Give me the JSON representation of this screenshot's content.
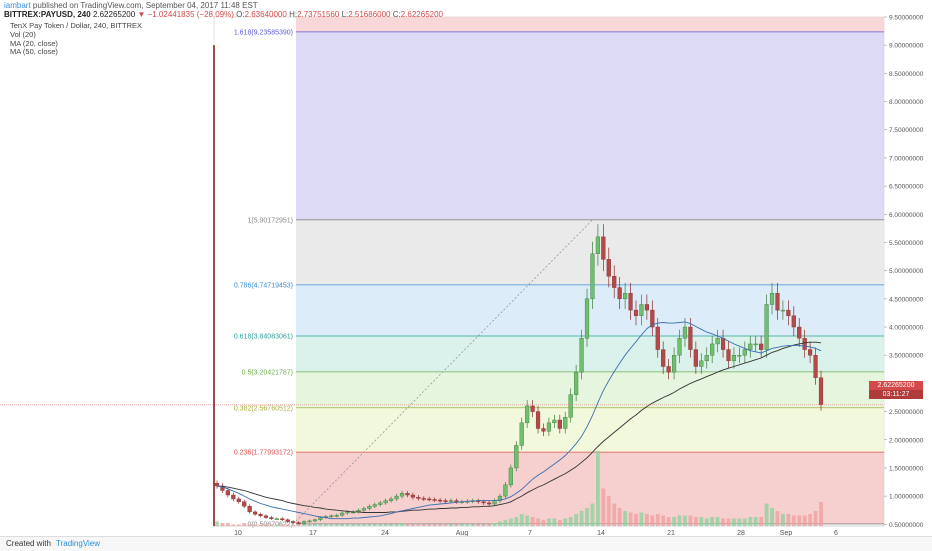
{
  "header": {
    "author": "iambart",
    "published_text": "published on TradingView.com, September 04, 2017 11:48 EST",
    "symbol": "BITTREX:PAYUSD, 240",
    "last": "2.62265200",
    "change": "▼ −1.02441835 (−28.09%)",
    "o_label": "O:",
    "o_value": "2.63640000",
    "h_label": "H:",
    "h_value": "2.73751560",
    "l_label": "L:",
    "l_value": "2.51686000",
    "c_label": "C:",
    "c_value": "2.62265200"
  },
  "legend": {
    "title": "TenX Pay Token / Dollar, 240, BITTREX",
    "vol": "Vol (20)",
    "ma20": "MA (20, close)",
    "ma50": "MA (50, close)"
  },
  "price_tags": {
    "last_price": "2.62265200",
    "countdown": "03:11:27"
  },
  "footer": {
    "created_with": "Created with",
    "brand": "TradingView"
  },
  "chart_data": {
    "type": "candlestick",
    "title": "TenX Pay Token / Dollar, 240, BITTREX",
    "ylim": [
      0,
      9.5
    ],
    "y_ticks": [
      "0.50000000",
      "1.00000000",
      "1.50000000",
      "2.00000000",
      "2.50000000",
      "3.00000000",
      "3.50000000",
      "4.00000000",
      "4.50000000",
      "5.00000000",
      "5.50000000",
      "6.00000000",
      "6.50000000",
      "7.00000000",
      "7.50000000",
      "8.00000000",
      "8.50000000",
      "9.00000000",
      "9.50000000"
    ],
    "x_tick_labels": [
      "10",
      "17",
      "24",
      "Aug",
      "7",
      "14",
      "21",
      "28",
      "Sep",
      "6"
    ],
    "fib_levels": [
      {
        "ratio": "0",
        "value": 0.50670622,
        "label": "0(0.50670622)",
        "color": "#888888"
      },
      {
        "ratio": "0.236",
        "value": 1.77993172,
        "label": "0.236(1.77993172)",
        "color": "#e05050"
      },
      {
        "ratio": "0.382",
        "value": 2.56760512,
        "label": "0.382(2.56760512)",
        "color": "#a8b040"
      },
      {
        "ratio": "0.5",
        "value": 3.20421787,
        "label": "0.5(3.20421787)",
        "color": "#6ab04c"
      },
      {
        "ratio": "0.618",
        "value": 3.84083061,
        "label": "0.618(3.84083061)",
        "color": "#2aa198"
      },
      {
        "ratio": "0.786",
        "value": 4.74719453,
        "label": "0.786(4.74719453)",
        "color": "#3b8ed8"
      },
      {
        "ratio": "1",
        "value": 5.90172951,
        "label": "1(5.90172951)",
        "color": "#888888"
      },
      {
        "ratio": "1.618",
        "value": 9.2358539,
        "label": "1.618(9.23585390)",
        "color": "#5b5bd6"
      }
    ],
    "fib_fills": [
      "#f4c7c7",
      "#eef7d6",
      "#e2f3d8",
      "#d5efe8",
      "#d6e9f7",
      "#e6e6e6",
      "#d6d3f3",
      "#f6d0d0"
    ],
    "close": [
      1.18,
      1.1,
      1.02,
      0.95,
      0.9,
      0.82,
      0.72,
      0.68,
      0.65,
      0.62,
      0.6,
      0.6,
      0.58,
      0.55,
      0.53,
      0.52,
      0.55,
      0.56,
      0.58,
      0.62,
      0.64,
      0.65,
      0.66,
      0.7,
      0.72,
      0.72,
      0.75,
      0.78,
      0.82,
      0.85,
      0.88,
      0.92,
      0.95,
      1.0,
      1.05,
      1.02,
      0.98,
      0.96,
      0.95,
      0.94,
      0.93,
      0.92,
      0.91,
      0.92,
      0.9,
      0.9,
      0.91,
      0.92,
      0.9,
      0.88,
      0.86,
      0.92,
      1.0,
      1.2,
      1.5,
      1.9,
      2.3,
      2.6,
      2.5,
      2.2,
      2.15,
      2.3,
      2.35,
      2.2,
      2.4,
      2.8,
      3.2,
      3.8,
      4.5,
      5.3,
      5.6,
      5.2,
      4.9,
      4.7,
      4.5,
      4.6,
      4.3,
      4.2,
      4.4,
      4.3,
      4.0,
      3.6,
      3.3,
      3.2,
      3.5,
      3.8,
      4.0,
      3.6,
      3.3,
      3.4,
      3.5,
      3.7,
      3.8,
      3.6,
      3.4,
      3.5,
      3.5,
      3.6,
      3.7,
      3.7,
      3.6,
      4.4,
      4.6,
      4.3,
      4.3,
      4.2,
      4.0,
      3.8,
      3.6,
      3.5,
      3.1,
      2.62
    ],
    "ma20": [
      1.18,
      1.16,
      1.13,
      1.09,
      1.05,
      1.0,
      0.95,
      0.91,
      0.87,
      0.84,
      0.81,
      0.79,
      0.77,
      0.75,
      0.73,
      0.71,
      0.69,
      0.67,
      0.65,
      0.63,
      0.62,
      0.6,
      0.6,
      0.6,
      0.6,
      0.61,
      0.61,
      0.62,
      0.63,
      0.64,
      0.65,
      0.67,
      0.69,
      0.72,
      0.74,
      0.76,
      0.78,
      0.8,
      0.82,
      0.84,
      0.85,
      0.86,
      0.87,
      0.88,
      0.89,
      0.9,
      0.91,
      0.91,
      0.92,
      0.92,
      0.92,
      0.92,
      0.93,
      0.95,
      0.99,
      1.05,
      1.12,
      1.21,
      1.3,
      1.37,
      1.43,
      1.5,
      1.57,
      1.64,
      1.72,
      1.82,
      1.93,
      2.06,
      2.23,
      2.43,
      2.66,
      2.87,
      3.05,
      3.21,
      3.36,
      3.5,
      3.62,
      3.74,
      3.86,
      3.97,
      4.04,
      4.07,
      4.08,
      4.07,
      4.07,
      4.08,
      4.09,
      4.06,
      4.01,
      3.96,
      3.91,
      3.88,
      3.84,
      3.8,
      3.75,
      3.7,
      3.66,
      3.62,
      3.58,
      3.56,
      3.54,
      3.58,
      3.62,
      3.64,
      3.66,
      3.67,
      3.67,
      3.67,
      3.66,
      3.65,
      3.62,
      3.58
    ],
    "ma50": [
      1.18,
      1.17,
      1.16,
      1.14,
      1.12,
      1.1,
      1.07,
      1.04,
      1.01,
      0.98,
      0.96,
      0.94,
      0.92,
      0.89,
      0.87,
      0.85,
      0.83,
      0.82,
      0.8,
      0.79,
      0.77,
      0.76,
      0.75,
      0.74,
      0.73,
      0.72,
      0.72,
      0.71,
      0.71,
      0.71,
      0.71,
      0.71,
      0.72,
      0.72,
      0.73,
      0.74,
      0.75,
      0.75,
      0.76,
      0.77,
      0.77,
      0.78,
      0.78,
      0.79,
      0.79,
      0.8,
      0.8,
      0.81,
      0.81,
      0.82,
      0.82,
      0.83,
      0.85,
      0.87,
      0.9,
      0.95,
      1.0,
      1.06,
      1.11,
      1.16,
      1.2,
      1.25,
      1.3,
      1.35,
      1.4,
      1.46,
      1.52,
      1.6,
      1.68,
      1.78,
      1.88,
      1.97,
      2.05,
      2.13,
      2.21,
      2.29,
      2.37,
      2.44,
      2.52,
      2.59,
      2.65,
      2.7,
      2.75,
      2.79,
      2.84,
      2.9,
      2.95,
      3.0,
      3.04,
      3.08,
      3.12,
      3.16,
      3.2,
      3.24,
      3.27,
      3.3,
      3.33,
      3.36,
      3.39,
      3.42,
      3.45,
      3.5,
      3.55,
      3.58,
      3.62,
      3.65,
      3.68,
      3.7,
      3.72,
      3.73,
      3.73,
      3.72
    ],
    "volume": [
      3,
      2,
      2,
      1,
      1,
      2,
      1,
      1,
      1,
      1,
      1,
      1,
      1,
      1,
      1,
      1,
      1,
      1,
      1,
      1,
      1,
      1,
      1,
      1,
      1,
      1,
      1,
      1,
      1,
      1,
      1,
      1,
      1,
      1,
      2,
      1,
      1,
      1,
      1,
      1,
      1,
      1,
      1,
      1,
      1,
      1,
      1,
      1,
      1,
      1,
      1,
      2,
      3,
      4,
      5,
      6,
      8,
      7,
      6,
      5,
      4,
      5,
      5,
      4,
      5,
      6,
      8,
      10,
      12,
      15,
      50,
      25,
      20,
      15,
      12,
      10,
      9,
      8,
      9,
      8,
      7,
      8,
      7,
      6,
      6,
      7,
      7,
      7,
      6,
      6,
      5,
      6,
      6,
      5,
      5,
      5,
      5,
      5,
      6,
      6,
      6,
      15,
      12,
      10,
      8,
      8,
      7,
      7,
      7,
      8,
      10,
      16
    ]
  }
}
